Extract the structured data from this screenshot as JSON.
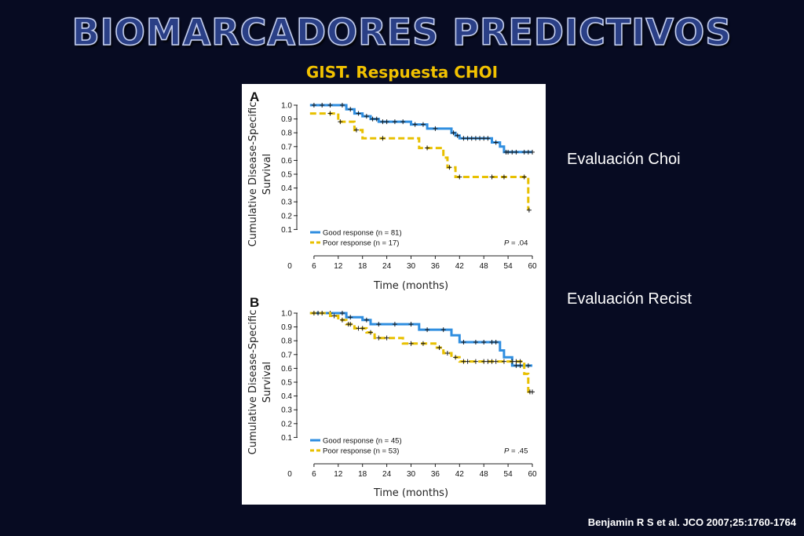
{
  "slide": {
    "title": "BIOMARCADORES PREDICTIVOS",
    "subtitle": "GIST. Respuesta CHOI",
    "label_choi": "Evaluación Choi",
    "label_recist": "Evaluación Recist",
    "citation": "Benjamin R S et al. JCO 2007;25:1760-1764"
  },
  "colors": {
    "good": "#2f8ee0",
    "poor": "#e8c000",
    "censor": "#1a1a1a",
    "axis": "#222222"
  },
  "chart_data": [
    {
      "type": "line",
      "panel": "A",
      "ylabel": "Cumulative Disease-Specific Survival",
      "xlabel": "Time (months)",
      "x_ticks": [
        0,
        6,
        12,
        18,
        24,
        30,
        36,
        42,
        48,
        54,
        60
      ],
      "y_ticks": [
        0.1,
        0.2,
        0.3,
        0.4,
        0.5,
        0.6,
        0.7,
        0.8,
        0.9,
        1.0
      ],
      "xlim": [
        0,
        60
      ],
      "ylim": [
        0,
        1.0
      ],
      "p_value": ".04",
      "step": true,
      "series": [
        {
          "name": "Good response (n = 81)",
          "color_key": "good",
          "points": [
            [
              5,
              1.0
            ],
            [
              14,
              1.0
            ],
            [
              14,
              0.97
            ],
            [
              16,
              0.97
            ],
            [
              16,
              0.94
            ],
            [
              18,
              0.94
            ],
            [
              18,
              0.92
            ],
            [
              20,
              0.92
            ],
            [
              20,
              0.9
            ],
            [
              22,
              0.9
            ],
            [
              22,
              0.88
            ],
            [
              30,
              0.88
            ],
            [
              30,
              0.86
            ],
            [
              34,
              0.86
            ],
            [
              34,
              0.83
            ],
            [
              40,
              0.83
            ],
            [
              40,
              0.8
            ],
            [
              41,
              0.8
            ],
            [
              41,
              0.78
            ],
            [
              42,
              0.78
            ],
            [
              42,
              0.76
            ],
            [
              50,
              0.76
            ],
            [
              50,
              0.73
            ],
            [
              52,
              0.73
            ],
            [
              52,
              0.7
            ],
            [
              53,
              0.7
            ],
            [
              53,
              0.66
            ],
            [
              60,
              0.66
            ]
          ],
          "censors": [
            [
              6,
              1.0
            ],
            [
              8,
              1.0
            ],
            [
              10,
              1.0
            ],
            [
              13,
              1.0
            ],
            [
              15,
              0.97
            ],
            [
              17,
              0.94
            ],
            [
              19,
              0.92
            ],
            [
              20.5,
              0.9
            ],
            [
              21.5,
              0.9
            ],
            [
              23,
              0.88
            ],
            [
              24,
              0.88
            ],
            [
              26,
              0.88
            ],
            [
              28,
              0.88
            ],
            [
              31,
              0.86
            ],
            [
              33,
              0.86
            ],
            [
              36,
              0.83
            ],
            [
              40.5,
              0.8
            ],
            [
              41.5,
              0.78
            ],
            [
              43,
              0.76
            ],
            [
              44,
              0.76
            ],
            [
              45,
              0.76
            ],
            [
              46,
              0.76
            ],
            [
              47,
              0.76
            ],
            [
              48,
              0.76
            ],
            [
              49,
              0.76
            ],
            [
              51,
              0.73
            ],
            [
              53.5,
              0.66
            ],
            [
              54,
              0.66
            ],
            [
              55,
              0.66
            ],
            [
              56,
              0.66
            ],
            [
              58,
              0.66
            ],
            [
              59,
              0.66
            ],
            [
              60,
              0.66
            ]
          ]
        },
        {
          "name": "Poor response (n = 17)",
          "color_key": "poor",
          "points": [
            [
              5,
              0.94
            ],
            [
              12,
              0.94
            ],
            [
              12,
              0.88
            ],
            [
              16,
              0.88
            ],
            [
              16,
              0.82
            ],
            [
              18,
              0.82
            ],
            [
              18,
              0.76
            ],
            [
              32,
              0.76
            ],
            [
              32,
              0.69
            ],
            [
              38,
              0.69
            ],
            [
              38,
              0.62
            ],
            [
              39,
              0.62
            ],
            [
              39,
              0.55
            ],
            [
              41,
              0.55
            ],
            [
              41,
              0.48
            ],
            [
              59,
              0.48
            ],
            [
              59,
              0.24
            ]
          ],
          "censors": [
            [
              10,
              0.94
            ],
            [
              12.5,
              0.88
            ],
            [
              16.5,
              0.82
            ],
            [
              23,
              0.76
            ],
            [
              34,
              0.69
            ],
            [
              39.5,
              0.55
            ],
            [
              42,
              0.48
            ],
            [
              50,
              0.48
            ],
            [
              53,
              0.48
            ],
            [
              58,
              0.48
            ],
            [
              59.2,
              0.24
            ]
          ]
        }
      ]
    },
    {
      "type": "line",
      "panel": "B",
      "ylabel": "Cumulative Disease-Specific Survival",
      "xlabel": "Time (months)",
      "x_ticks": [
        0,
        6,
        12,
        18,
        24,
        30,
        36,
        42,
        48,
        54,
        60
      ],
      "y_ticks": [
        0.1,
        0.2,
        0.3,
        0.4,
        0.5,
        0.6,
        0.7,
        0.8,
        0.9,
        1.0
      ],
      "xlim": [
        0,
        60
      ],
      "ylim": [
        0,
        1.0
      ],
      "p_value": ".45",
      "step": true,
      "series": [
        {
          "name": "Good response (n = 45)",
          "color_key": "good",
          "points": [
            [
              5,
              1.0
            ],
            [
              14,
              1.0
            ],
            [
              14,
              0.97
            ],
            [
              18,
              0.97
            ],
            [
              18,
              0.95
            ],
            [
              20,
              0.95
            ],
            [
              20,
              0.92
            ],
            [
              32,
              0.92
            ],
            [
              32,
              0.88
            ],
            [
              40,
              0.88
            ],
            [
              40,
              0.84
            ],
            [
              42,
              0.84
            ],
            [
              42,
              0.79
            ],
            [
              52,
              0.79
            ],
            [
              52,
              0.73
            ],
            [
              53,
              0.73
            ],
            [
              53,
              0.68
            ],
            [
              55,
              0.68
            ],
            [
              55,
              0.62
            ],
            [
              60,
              0.62
            ]
          ],
          "censors": [
            [
              7,
              1.0
            ],
            [
              10,
              1.0
            ],
            [
              13,
              1.0
            ],
            [
              15,
              0.97
            ],
            [
              19,
              0.95
            ],
            [
              22,
              0.92
            ],
            [
              26,
              0.92
            ],
            [
              30,
              0.92
            ],
            [
              34,
              0.88
            ],
            [
              38,
              0.88
            ],
            [
              43,
              0.79
            ],
            [
              46,
              0.79
            ],
            [
              48,
              0.79
            ],
            [
              50,
              0.79
            ],
            [
              51,
              0.79
            ],
            [
              56,
              0.62
            ],
            [
              57,
              0.62
            ],
            [
              59,
              0.62
            ]
          ]
        },
        {
          "name": "Poor response (n = 53)",
          "color_key": "poor",
          "points": [
            [
              5,
              1.0
            ],
            [
              10,
              1.0
            ],
            [
              10,
              0.98
            ],
            [
              12,
              0.98
            ],
            [
              12,
              0.95
            ],
            [
              14,
              0.95
            ],
            [
              14,
              0.92
            ],
            [
              16,
              0.92
            ],
            [
              16,
              0.89
            ],
            [
              19,
              0.89
            ],
            [
              19,
              0.86
            ],
            [
              21,
              0.86
            ],
            [
              21,
              0.82
            ],
            [
              28,
              0.82
            ],
            [
              28,
              0.78
            ],
            [
              36,
              0.78
            ],
            [
              36,
              0.75
            ],
            [
              38,
              0.75
            ],
            [
              38,
              0.71
            ],
            [
              40,
              0.71
            ],
            [
              40,
              0.68
            ],
            [
              42,
              0.68
            ],
            [
              42,
              0.65
            ],
            [
              58,
              0.65
            ],
            [
              58,
              0.56
            ],
            [
              59,
              0.56
            ],
            [
              59,
              0.43
            ],
            [
              60,
              0.43
            ]
          ],
          "censors": [
            [
              6,
              1.0
            ],
            [
              8,
              1.0
            ],
            [
              11,
              0.98
            ],
            [
              13,
              0.95
            ],
            [
              14.5,
              0.92
            ],
            [
              15,
              0.92
            ],
            [
              17,
              0.89
            ],
            [
              18,
              0.89
            ],
            [
              20,
              0.86
            ],
            [
              22,
              0.82
            ],
            [
              24,
              0.82
            ],
            [
              30,
              0.78
            ],
            [
              33,
              0.78
            ],
            [
              37,
              0.75
            ],
            [
              39,
              0.71
            ],
            [
              41,
              0.68
            ],
            [
              43,
              0.65
            ],
            [
              44,
              0.65
            ],
            [
              46,
              0.65
            ],
            [
              48,
              0.65
            ],
            [
              49,
              0.65
            ],
            [
              50,
              0.65
            ],
            [
              51,
              0.65
            ],
            [
              53,
              0.65
            ],
            [
              55,
              0.65
            ],
            [
              56,
              0.65
            ],
            [
              57,
              0.65
            ],
            [
              59.4,
              0.43
            ],
            [
              60,
              0.43
            ]
          ]
        }
      ]
    }
  ]
}
